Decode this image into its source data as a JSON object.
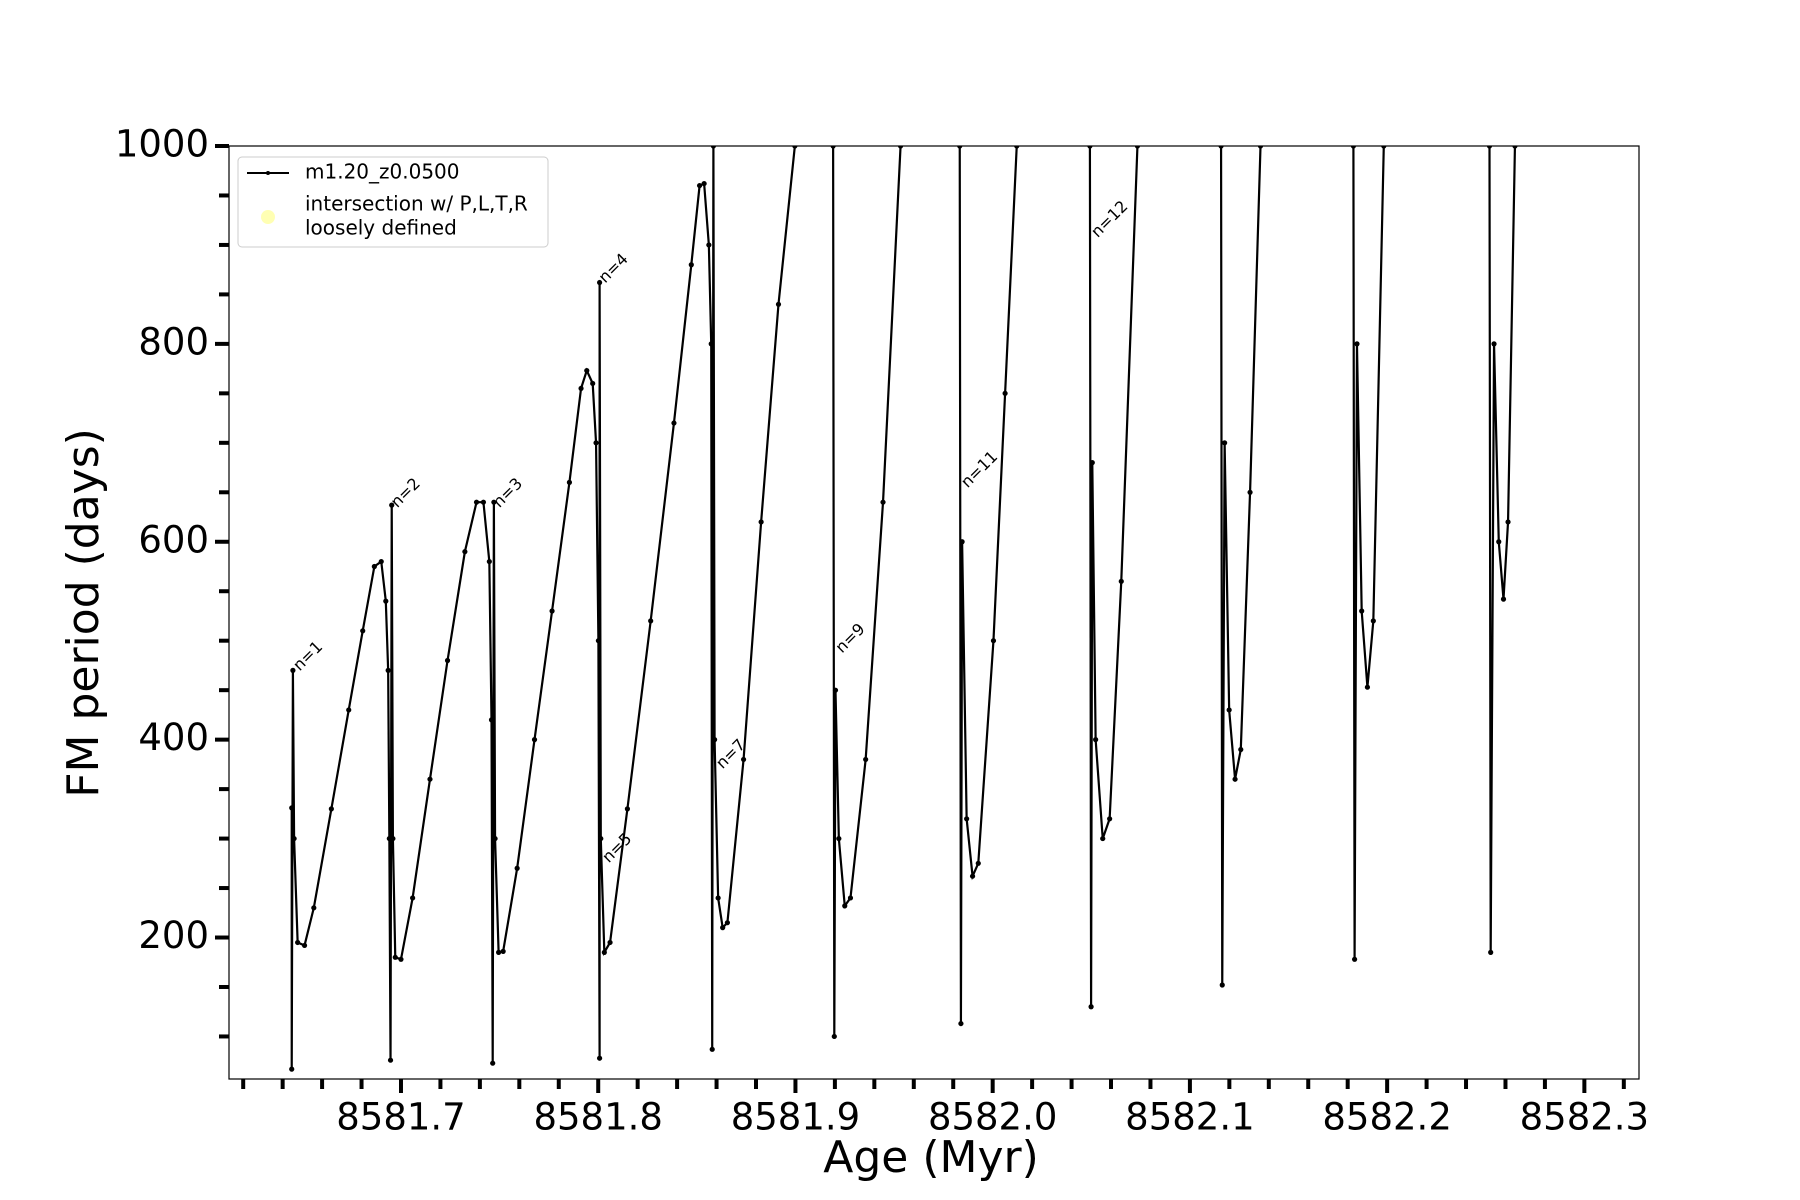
{
  "chart_data": {
    "type": "line",
    "x_label": "Age (Myr)",
    "y_label": "FM period (days)",
    "xlim": [
      8581.6128,
      8582.3277
    ],
    "ylim": [
      57,
      1000
    ],
    "xticks": [
      8581.7,
      8581.8,
      8581.9,
      {
        "value": 8582,
        "label": "8582.0"
      },
      8582.1,
      8582.2,
      8582.3
    ],
    "xminorticks": [
      8581.62,
      8581.64,
      8581.66,
      8581.68,
      8581.72,
      8581.74,
      8581.76,
      8581.78,
      8581.82,
      8581.84,
      8581.86,
      8581.88,
      8581.92,
      8581.94,
      8581.96,
      8581.98,
      8582.02,
      8582.04,
      8582.06,
      8582.08,
      8582.12,
      8582.14,
      8582.16,
      8582.18,
      8582.22,
      8582.24,
      8582.26,
      8582.28,
      8582.32
    ],
    "yticks": [
      200,
      400,
      600,
      800,
      1000
    ],
    "yminorticks": [
      100,
      150,
      250,
      300,
      350,
      450,
      500,
      550,
      650,
      700,
      750,
      850,
      900,
      950
    ],
    "grid": false,
    "legend": "upper left",
    "series": [
      {
        "name": [
          "m1.20_z0.0500"
        ],
        "color": "#000000",
        "marker": "dot",
        "x": [
          8581.6446,
          8581.6446,
          8581.6452,
          8581.6458,
          8581.6476,
          8581.6511,
          8581.6558,
          8581.6647,
          8581.6735,
          8581.6806,
          8581.6865,
          8581.69,
          8581.6923,
          8581.6935,
          8581.6941,
          8581.6947,
          8581.6953,
          8581.6959,
          8581.6971,
          8581.7,
          8581.7059,
          8581.7147,
          8581.7236,
          8581.7324,
          8581.7383,
          8581.7418,
          8581.7448,
          8581.7459,
          8581.7465,
          8581.7471,
          8581.7477,
          8581.7495,
          8581.7518,
          8581.7589,
          8581.7677,
          8581.7766,
          8581.7854,
          8581.7913,
          8581.7942,
          8581.7972,
          8581.7989,
          8581.8001,
          8581.8007,
          8581.8007,
          8581.8013,
          8581.8031,
          8581.806,
          8581.8148,
          8581.8266,
          8581.8384,
          8581.8472,
          8581.8514,
          8581.8537,
          8581.8561,
          8581.8573,
          8581.8578,
          8581.8584,
          8581.859,
          8581.8608,
          8581.8631,
          8581.8655,
          8581.8737,
          8581.8826,
          8581.8914,
          8581.8997,
          null,
          8581.9191,
          8581.9197,
          8581.9203,
          8581.922,
          8581.925,
          8581.9279,
          8581.9356,
          8581.9444,
          8581.9533,
          null,
          8581.9833,
          8581.9839,
          8581.9845,
          8581.9868,
          8581.9898,
          8581.9927,
          8582.0004,
          8582.0063,
          8582.0122,
          null,
          8582.0493,
          8582.0499,
          8582.0505,
          8582.0522,
          8582.0558,
          8582.0593,
          8582.0652,
          8582.0734,
          null,
          8582.1158,
          8582.1164,
          8582.1176,
          8582.1199,
          8582.1229,
          8582.1258,
          8582.1305,
          8582.1358,
          null,
          8582.1829,
          8582.1835,
          8582.1847,
          8582.1871,
          8582.19,
          8582.193,
          8582.1983,
          null,
          8582.2519,
          8582.2525,
          8582.2542,
          8582.2566,
          8582.259,
          8582.2613,
          8582.2648
        ],
        "values": [
          331,
          67,
          470,
          300,
          195,
          192,
          230,
          330,
          430,
          510,
          575,
          580,
          540,
          470,
          300,
          76,
          637,
          300,
          180,
          178,
          240,
          360,
          480,
          590,
          640,
          640,
          580,
          420,
          73,
          640,
          300,
          185,
          186,
          270,
          400,
          530,
          660,
          755,
          773,
          760,
          700,
          500,
          78,
          862,
          300,
          185,
          195,
          330,
          520,
          720,
          880,
          960,
          962,
          900,
          800,
          87,
          1000,
          400,
          240,
          210,
          215,
          380,
          620,
          840,
          1000,
          null,
          1000,
          100,
          450,
          300,
          232,
          240,
          380,
          640,
          1000,
          null,
          1000,
          113,
          600,
          320,
          262,
          275,
          500,
          750,
          1000,
          null,
          1000,
          130,
          680,
          400,
          300,
          320,
          560,
          1000,
          null,
          1000,
          152,
          700,
          430,
          360,
          390,
          650,
          1000,
          null,
          1000,
          178,
          800,
          530,
          453,
          520,
          1000,
          null,
          1000,
          185,
          800,
          600,
          542,
          620,
          1000
        ]
      },
      {
        "name": [
          "intersection w/ P,L,T,R",
          "loosely defined"
        ],
        "color": "#ffffb3",
        "marker": "circle",
        "x": [],
        "values": []
      }
    ],
    "annotations": [
      {
        "text": "n=1",
        "x": 8581.647,
        "y": 472
      },
      {
        "text": "n=2",
        "x": 8581.6965,
        "y": 637
      },
      {
        "text": "n=3",
        "x": 8581.7483,
        "y": 637
      },
      {
        "text": "n=4",
        "x": 8581.8019,
        "y": 864
      },
      {
        "text": "n=5",
        "x": 8581.8037,
        "y": 278
      },
      {
        "text": "n=7",
        "x": 8581.8614,
        "y": 373
      },
      {
        "text": "n=9",
        "x": 8581.922,
        "y": 490
      },
      {
        "text": "n=11",
        "x": 8581.9856,
        "y": 657
      },
      {
        "text": "n=12",
        "x": 8582.0516,
        "y": 910
      }
    ]
  }
}
